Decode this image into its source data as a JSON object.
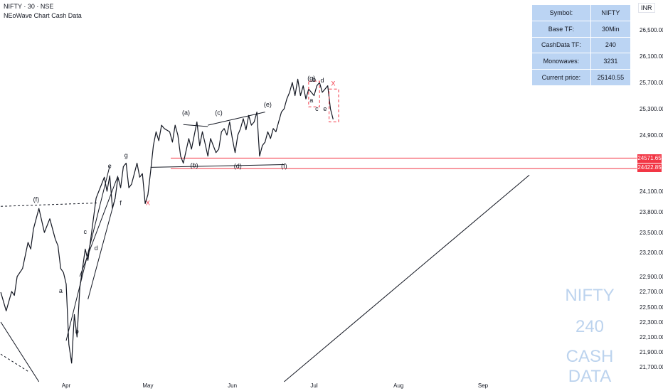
{
  "header": {
    "title": "NIFTY · 30 · NSE",
    "subtitle": "NEoWave Chart Cash Data"
  },
  "currency": "INR",
  "info_table": [
    {
      "label": "Symbol:",
      "value": "NIFTY"
    },
    {
      "label": "Base TF:",
      "value": "30Min"
    },
    {
      "label": "CashData TF:",
      "value": "240"
    },
    {
      "label": "Monowaves:",
      "value": "3231"
    },
    {
      "label": "Current price:",
      "value": "25140.55"
    }
  ],
  "watermark": [
    "NIFTY",
    "240",
    "CASH DATA"
  ],
  "colors": {
    "price_line": "#131722",
    "accent_red": "#f23645",
    "info_bg": "#bbd4f3",
    "watermark": "#bcd3ee"
  },
  "chart_data": {
    "type": "line",
    "title": "NIFTY · 30 · NSE",
    "subtitle": "NEoWave Chart Cash Data",
    "x_ticks": [
      "Apr",
      "May",
      "Jun",
      "Jul",
      "Aug",
      "Sep"
    ],
    "x_tick_days": [
      0,
      30,
      61,
      91,
      122,
      153
    ],
    "xlim": [
      -24,
      170
    ],
    "y_ticks": [
      26500,
      26100,
      25700,
      25300,
      24900,
      24100,
      23800,
      23500,
      23200,
      22900,
      22700,
      22500,
      22300,
      22100,
      21900,
      21700
    ],
    "ylim": [
      21500,
      26850
    ],
    "y_scale": "custom (matches printed tick spacing)",
    "grid": false,
    "price_tags": [
      24571.65,
      24422.85
    ],
    "series": [
      {
        "x": [
          -24,
          -22,
          -20,
          -19,
          -18,
          -16,
          -14,
          -13,
          -12,
          -10,
          -8,
          -6,
          -4,
          -3,
          -2,
          -1,
          0,
          1,
          2,
          3,
          4,
          5,
          7,
          8,
          10,
          11,
          13,
          14,
          15,
          16,
          17,
          18,
          19,
          20,
          21,
          22,
          23,
          24,
          25,
          26,
          27,
          28,
          29,
          30,
          31,
          32,
          33,
          34,
          35,
          36,
          38,
          39,
          40,
          41,
          42,
          43,
          45,
          46,
          48,
          49,
          50,
          51,
          52,
          53,
          55,
          56,
          57,
          58,
          59,
          60,
          61,
          62,
          63,
          64,
          65,
          66,
          67,
          68,
          69,
          70,
          71,
          72,
          73,
          74,
          75,
          76,
          77,
          78,
          79,
          80,
          81,
          82,
          83,
          84,
          85,
          86,
          87,
          88,
          89,
          90,
          91,
          92,
          93,
          94,
          95,
          96,
          97,
          98
        ],
        "y": [
          22690,
          22450,
          22700,
          22650,
          22900,
          23000,
          23350,
          23250,
          23550,
          23850,
          23500,
          23700,
          23400,
          23300,
          23000,
          22950,
          22800,
          22000,
          21750,
          22400,
          22100,
          22750,
          23250,
          23100,
          23700,
          24000,
          24200,
          24300,
          24100,
          24320,
          23850,
          24000,
          24300,
          24150,
          24450,
          24500,
          24150,
          24200,
          24350,
          24500,
          24300,
          24350,
          23920,
          24050,
          24380,
          24750,
          24950,
          24820,
          25050,
          25000,
          24950,
          24800,
          25050,
          24900,
          24600,
          24500,
          24850,
          24700,
          25100,
          24750,
          24950,
          24780,
          24600,
          24850,
          24650,
          24700,
          24950,
          25000,
          24900,
          25100,
          24850,
          24650,
          24900,
          25000,
          25150,
          24980,
          25200,
          25050,
          25100,
          25250,
          24600,
          24750,
          24800,
          24950,
          24850,
          25000,
          24950,
          25100,
          25250,
          25300,
          25450,
          25550,
          25700,
          25500,
          25750,
          25500,
          25650,
          25450,
          25600,
          25550,
          25500,
          25650,
          25700,
          25550,
          25600,
          25650,
          25300,
          25140
        ]
      }
    ],
    "annotations": [
      {
        "text": "(f)",
        "x": -11,
        "y": 23950
      },
      {
        "text": "a",
        "x": -2,
        "y": 22680
      },
      {
        "text": "b",
        "x": 4,
        "y": 22150
      },
      {
        "text": "c",
        "x": 7,
        "y": 23480
      },
      {
        "text": "d",
        "x": 11,
        "y": 23230
      },
      {
        "text": "e",
        "x": 16,
        "y": 24430
      },
      {
        "text": "f",
        "x": 20,
        "y": 23900
      },
      {
        "text": "g",
        "x": 22,
        "y": 24580
      },
      {
        "text": "X",
        "x": 30,
        "y": 23900
      },
      {
        "text": "(a)",
        "x": 44,
        "y": 25210
      },
      {
        "text": "(b)",
        "x": 47,
        "y": 24440
      },
      {
        "text": "(c)",
        "x": 56,
        "y": 25210
      },
      {
        "text": "(d)",
        "x": 63,
        "y": 24430
      },
      {
        "text": "(e)",
        "x": 74,
        "y": 25330
      },
      {
        "text": "(f)",
        "x": 80,
        "y": 24430
      },
      {
        "text": "(g)",
        "x": 90,
        "y": 25730
      },
      {
        "text": "b",
        "x": 91,
        "y": 25710
      },
      {
        "text": "d",
        "x": 94,
        "y": 25700
      },
      {
        "text": "a",
        "x": 90,
        "y": 25400
      },
      {
        "text": "c",
        "x": 92,
        "y": 25270
      },
      {
        "text": "e",
        "x": 95,
        "y": 25270
      },
      {
        "text": "X",
        "x": 98,
        "y": 25650
      }
    ]
  }
}
